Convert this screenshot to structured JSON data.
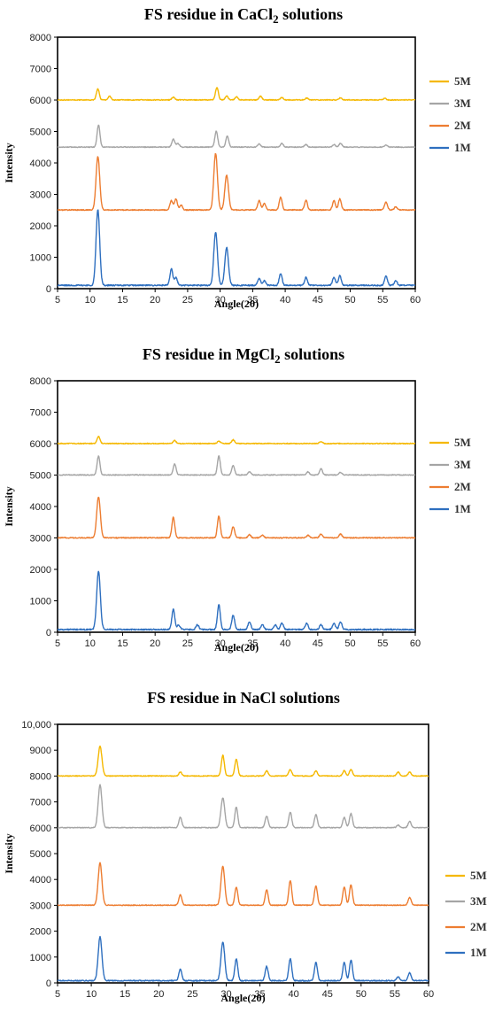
{
  "chart_data": [
    {
      "type": "line",
      "title": "FS residue in CaCl₂ solutions",
      "title_parts": {
        "pre": "FS residue in CaCl",
        "sub": "2",
        "post": " solutions"
      },
      "xlabel": "Angle(2θ)",
      "ylabel": "Intensity",
      "xlim": [
        5,
        60
      ],
      "ylim": [
        0,
        8000
      ],
      "xticks": [
        5,
        10,
        15,
        20,
        25,
        30,
        35,
        40,
        45,
        50,
        55,
        60
      ],
      "yticks": [
        0,
        1000,
        2000,
        3000,
        4000,
        5000,
        6000,
        7000,
        8000
      ],
      "ytick_labels": [
        "0",
        "1000",
        "2000",
        "3000",
        "4000",
        "5000",
        "6000",
        "7000",
        "8000"
      ],
      "grid": false,
      "legend_position": "right",
      "legend": [
        "5M",
        "3M",
        "2M",
        "1M"
      ],
      "series": [
        {
          "name": "5M",
          "color": "#f5b800",
          "baseline": 6000,
          "noise": 25,
          "peaks": [
            [
              11.2,
              350
            ],
            [
              13.0,
              120
            ],
            [
              22.8,
              90
            ],
            [
              29.5,
              400
            ],
            [
              31.0,
              130
            ],
            [
              32.5,
              100
            ],
            [
              36.2,
              120
            ],
            [
              39.5,
              80
            ],
            [
              43.3,
              60
            ],
            [
              48.5,
              70
            ],
            [
              55.3,
              50
            ]
          ]
        },
        {
          "name": "3M",
          "color": "#a5a5a5",
          "baseline": 4500,
          "noise": 25,
          "peaks": [
            [
              11.3,
              700
            ],
            [
              22.8,
              250
            ],
            [
              23.5,
              120
            ],
            [
              29.4,
              500
            ],
            [
              31.1,
              350
            ],
            [
              36.0,
              100
            ],
            [
              39.5,
              120
            ],
            [
              43.2,
              80
            ],
            [
              47.5,
              80
            ],
            [
              48.5,
              120
            ],
            [
              55.5,
              60
            ]
          ]
        },
        {
          "name": "2M",
          "color": "#ed7d31",
          "baseline": 2500,
          "noise": 30,
          "peaks": [
            [
              11.2,
              1700
            ],
            [
              22.5,
              300
            ],
            [
              23.2,
              350
            ],
            [
              24.0,
              150
            ],
            [
              29.3,
              1800
            ],
            [
              31.0,
              1100
            ],
            [
              36.0,
              300
            ],
            [
              36.8,
              200
            ],
            [
              39.3,
              400
            ],
            [
              43.2,
              300
            ],
            [
              47.5,
              300
            ],
            [
              48.4,
              350
            ],
            [
              55.5,
              250
            ],
            [
              57.0,
              100
            ]
          ]
        },
        {
          "name": "1M",
          "color": "#2e6fbf",
          "baseline": 100,
          "noise": 40,
          "peaks": [
            [
              11.2,
              2400
            ],
            [
              22.5,
              520
            ],
            [
              23.2,
              250
            ],
            [
              29.3,
              1700
            ],
            [
              31.0,
              1200
            ],
            [
              36.0,
              220
            ],
            [
              36.8,
              150
            ],
            [
              39.3,
              380
            ],
            [
              43.2,
              250
            ],
            [
              47.5,
              250
            ],
            [
              48.4,
              300
            ],
            [
              55.5,
              300
            ],
            [
              57.0,
              150
            ]
          ]
        }
      ]
    },
    {
      "type": "line",
      "title": "FS residue in MgCl₂ solutions",
      "title_parts": {
        "pre": "FS residue in MgCl",
        "sub": "2",
        "post": " solutions"
      },
      "xlabel": "Angle(2θ)",
      "ylabel": "Intensity",
      "xlim": [
        5,
        60
      ],
      "ylim": [
        0,
        8000
      ],
      "xticks": [
        5,
        10,
        15,
        20,
        25,
        30,
        35,
        40,
        45,
        50,
        55,
        60
      ],
      "yticks": [
        0,
        1000,
        2000,
        3000,
        4000,
        5000,
        6000,
        7000,
        8000
      ],
      "ytick_labels": [
        "0",
        "1000",
        "2000",
        "3000",
        "4000",
        "5000",
        "6000",
        "7000",
        "8000"
      ],
      "grid": false,
      "legend_position": "right",
      "legend": [
        "5M",
        "3M",
        "2M",
        "1M"
      ],
      "series": [
        {
          "name": "5M",
          "color": "#f5b800",
          "baseline": 6000,
          "noise": 25,
          "peaks": [
            [
              11.3,
              230
            ],
            [
              23.0,
              100
            ],
            [
              29.8,
              80
            ],
            [
              32.0,
              120
            ],
            [
              45.5,
              60
            ]
          ]
        },
        {
          "name": "3M",
          "color": "#a5a5a5",
          "baseline": 5000,
          "noise": 25,
          "peaks": [
            [
              11.3,
              600
            ],
            [
              23.0,
              350
            ],
            [
              29.8,
              600
            ],
            [
              32.0,
              300
            ],
            [
              34.5,
              100
            ],
            [
              43.5,
              100
            ],
            [
              45.5,
              200
            ],
            [
              48.5,
              80
            ]
          ]
        },
        {
          "name": "2M",
          "color": "#ed7d31",
          "baseline": 3000,
          "noise": 30,
          "peaks": [
            [
              11.3,
              1300
            ],
            [
              22.8,
              650
            ],
            [
              29.8,
              700
            ],
            [
              32.0,
              350
            ],
            [
              34.5,
              100
            ],
            [
              36.5,
              80
            ],
            [
              43.5,
              80
            ],
            [
              45.5,
              120
            ],
            [
              48.5,
              120
            ]
          ]
        },
        {
          "name": "1M",
          "color": "#2e6fbf",
          "baseline": 80,
          "noise": 40,
          "peaks": [
            [
              11.3,
              1850
            ],
            [
              22.8,
              650
            ],
            [
              23.6,
              150
            ],
            [
              26.5,
              150
            ],
            [
              29.8,
              800
            ],
            [
              32.0,
              450
            ],
            [
              34.5,
              250
            ],
            [
              36.5,
              150
            ],
            [
              38.5,
              150
            ],
            [
              39.5,
              200
            ],
            [
              43.3,
              200
            ],
            [
              45.5,
              150
            ],
            [
              47.5,
              200
            ],
            [
              48.5,
              250
            ]
          ]
        }
      ]
    },
    {
      "type": "line",
      "title": "FS residue in NaCl solutions",
      "title_parts": {
        "pre": "FS residue in NaCl solutions",
        "sub": "",
        "post": ""
      },
      "xlabel": "Angle(2θ)",
      "ylabel": "Intensity",
      "xlim": [
        5,
        60
      ],
      "ylim": [
        0,
        10000
      ],
      "xticks": [
        5,
        10,
        15,
        20,
        25,
        30,
        35,
        40,
        45,
        50,
        55,
        60
      ],
      "yticks": [
        0,
        1000,
        2000,
        3000,
        4000,
        5000,
        6000,
        7000,
        8000,
        9000,
        10000
      ],
      "ytick_labels": [
        "0",
        "1000",
        "2000",
        "3000",
        "4000",
        "5000",
        "6000",
        "7000",
        "8000",
        "9000",
        "10,000"
      ],
      "grid": false,
      "legend_position": "right",
      "legend": [
        "5M",
        "3M",
        "2M",
        "1M"
      ],
      "series": [
        {
          "name": "5M",
          "color": "#f5b800",
          "baseline": 8000,
          "noise": 30,
          "peaks": [
            [
              11.3,
              1150
            ],
            [
              23.2,
              150
            ],
            [
              29.5,
              800
            ],
            [
              31.5,
              650
            ],
            [
              36.0,
              200
            ],
            [
              39.5,
              250
            ],
            [
              43.3,
              200
            ],
            [
              47.5,
              200
            ],
            [
              48.5,
              250
            ],
            [
              55.5,
              150
            ],
            [
              57.2,
              150
            ]
          ]
        },
        {
          "name": "3M",
          "color": "#a5a5a5",
          "baseline": 6000,
          "noise": 30,
          "peaks": [
            [
              11.3,
              1650
            ],
            [
              23.2,
              400
            ],
            [
              29.5,
              1150
            ],
            [
              31.5,
              800
            ],
            [
              36.0,
              450
            ],
            [
              39.5,
              600
            ],
            [
              43.3,
              500
            ],
            [
              47.5,
              400
            ],
            [
              48.5,
              550
            ],
            [
              55.5,
              100
            ],
            [
              57.2,
              250
            ]
          ]
        },
        {
          "name": "2M",
          "color": "#ed7d31",
          "baseline": 3000,
          "noise": 30,
          "peaks": [
            [
              11.3,
              1650
            ],
            [
              23.2,
              400
            ],
            [
              29.5,
              1500
            ],
            [
              31.5,
              700
            ],
            [
              36.0,
              600
            ],
            [
              39.5,
              950
            ],
            [
              43.3,
              750
            ],
            [
              47.5,
              700
            ],
            [
              48.5,
              800
            ],
            [
              57.2,
              300
            ]
          ]
        },
        {
          "name": "1M",
          "color": "#2e6fbf",
          "baseline": 80,
          "noise": 40,
          "peaks": [
            [
              11.3,
              1700
            ],
            [
              23.2,
              450
            ],
            [
              29.5,
              1500
            ],
            [
              31.5,
              850
            ],
            [
              36.0,
              550
            ],
            [
              39.5,
              850
            ],
            [
              43.3,
              700
            ],
            [
              47.5,
              700
            ],
            [
              48.5,
              800
            ],
            [
              55.5,
              150
            ],
            [
              57.2,
              300
            ]
          ]
        }
      ]
    }
  ]
}
